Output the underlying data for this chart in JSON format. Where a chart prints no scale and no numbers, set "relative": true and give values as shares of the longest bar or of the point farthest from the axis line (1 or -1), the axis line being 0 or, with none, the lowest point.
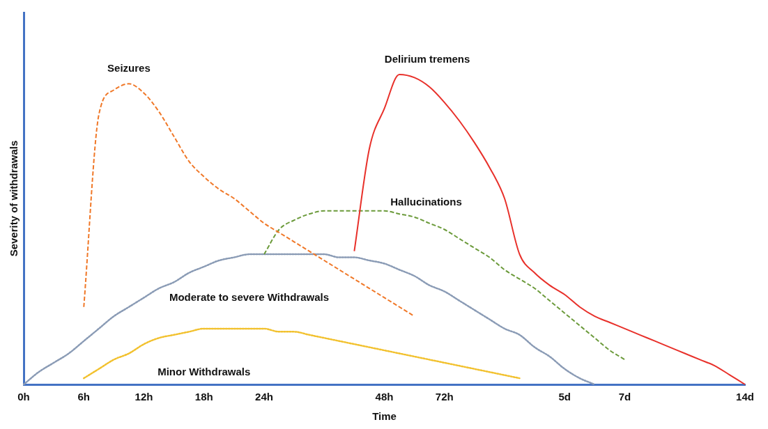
{
  "chart_data": {
    "type": "line",
    "xlabel": "Time",
    "ylabel": "Severity of withdrawals",
    "relative": true,
    "legend": false,
    "grid": false,
    "marker": "none",
    "categories": [
      "0h",
      null,
      null,
      null,
      "6h",
      null,
      null,
      null,
      "12h",
      null,
      null,
      null,
      "18h",
      null,
      null,
      null,
      "24h",
      null,
      null,
      null,
      null,
      null,
      null,
      null,
      "48h",
      null,
      null,
      null,
      "72h",
      null,
      null,
      null,
      null,
      null,
      null,
      null,
      "5d",
      null,
      null,
      null,
      "7d",
      null,
      null,
      null,
      null,
      null,
      null,
      null,
      "14d"
    ],
    "series": [
      {
        "name": "Seizures",
        "color": "#f07828",
        "line_style": "dashed",
        "values": [
          null,
          null,
          null,
          null,
          0.25,
          0.87,
          0.95,
          0.97,
          0.94,
          0.88,
          0.8,
          0.72,
          0.67,
          0.63,
          0.6,
          0.56,
          0.52,
          0.49,
          0.46,
          0.43,
          0.4,
          0.37,
          0.34,
          0.31,
          0.28,
          0.25,
          0.22,
          null,
          null,
          null,
          null,
          null,
          null,
          null,
          null,
          null,
          null,
          null,
          null,
          null,
          null,
          null,
          null,
          null,
          null,
          null,
          null,
          null,
          null
        ]
      },
      {
        "name": "Delirium tremens",
        "color": "#e8302a",
        "line_style": "solid",
        "values": [
          null,
          null,
          null,
          null,
          null,
          null,
          null,
          null,
          null,
          null,
          null,
          null,
          null,
          null,
          null,
          null,
          null,
          null,
          null,
          null,
          null,
          null,
          0.43,
          0.76,
          0.89,
          1,
          0.99,
          0.96,
          0.91,
          0.85,
          0.78,
          0.7,
          0.6,
          0.42,
          0.36,
          0.32,
          0.29,
          0.25,
          0.22,
          0.2,
          0.18,
          0.16,
          0.14,
          0.12,
          0.1,
          0.08,
          0.06,
          0.03,
          0
        ]
      },
      {
        "name": "Hallucinations",
        "color": "#6b9a3a",
        "line_style": "dashed",
        "values": [
          null,
          null,
          null,
          null,
          null,
          null,
          null,
          null,
          null,
          null,
          null,
          null,
          null,
          null,
          null,
          null,
          0.42,
          0.5,
          0.53,
          0.55,
          0.56,
          0.56,
          0.56,
          0.56,
          0.56,
          0.55,
          0.54,
          0.52,
          0.5,
          0.47,
          0.44,
          0.41,
          0.37,
          0.34,
          0.31,
          0.27,
          0.23,
          0.19,
          0.15,
          0.11,
          0.08,
          null,
          null,
          null,
          null,
          null,
          null,
          null,
          null
        ]
      },
      {
        "name": "Moderate to severe Withdrawals",
        "color": "#8a9bb5",
        "line_style": "dotted",
        "values": [
          0,
          0.04,
          0.07,
          0.1,
          0.14,
          0.18,
          0.22,
          0.25,
          0.28,
          0.31,
          0.33,
          0.36,
          0.38,
          0.4,
          0.41,
          0.42,
          0.42,
          0.42,
          0.42,
          0.42,
          0.42,
          0.41,
          0.41,
          0.4,
          0.39,
          0.37,
          0.35,
          0.32,
          0.3,
          0.27,
          0.24,
          0.21,
          0.18,
          0.16,
          0.12,
          0.09,
          0.05,
          0.02,
          0,
          null,
          null,
          null,
          null,
          null,
          null,
          null,
          null,
          null,
          null
        ]
      },
      {
        "name": "Minor Withdrawals",
        "color": "#f2c12e",
        "line_style": "dotted",
        "values": [
          null,
          null,
          null,
          null,
          0.02,
          0.05,
          0.08,
          0.1,
          0.13,
          0.15,
          0.16,
          0.17,
          0.18,
          0.18,
          0.18,
          0.18,
          0.18,
          0.17,
          0.17,
          0.16,
          0.15,
          0.14,
          0.13,
          0.12,
          0.11,
          0.1,
          0.09,
          0.08,
          0.07,
          0.06,
          0.05,
          0.04,
          0.03,
          0.02,
          null,
          null,
          null,
          null,
          null,
          null,
          null,
          null,
          null,
          null,
          null,
          null,
          null,
          null,
          null
        ]
      }
    ]
  }
}
